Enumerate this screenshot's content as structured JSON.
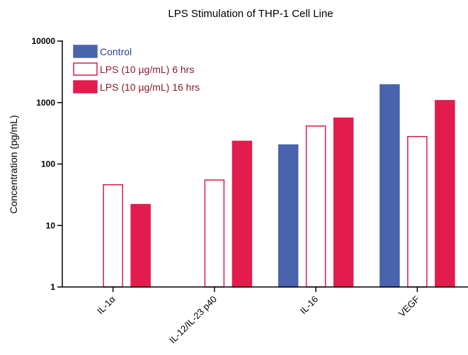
{
  "chart_data": {
    "type": "bar",
    "title": "LPS Stimulation of THP-1 Cell Line",
    "ylabel": "Concentration (pg/mL)",
    "xlabel": "",
    "yscale": "log",
    "ylim": [
      1,
      10000
    ],
    "yticks": [
      "1",
      "10",
      "100",
      "1000",
      "10000"
    ],
    "grid": false,
    "legend_position": "top-left",
    "categories": [
      "IL-1α",
      "IL-12/IL-23 p40",
      "IL-16",
      "VEGF"
    ],
    "series": [
      {
        "name": "Control",
        "values": [
          null,
          null,
          205,
          1950
        ],
        "fill": "#4a63ad",
        "stroke": "#4a63ad",
        "label_color": "#2e3f8f"
      },
      {
        "name": "LPS (10 µg/mL) 6 hrs",
        "values": [
          46,
          55,
          415,
          280
        ],
        "fill": "#ffffff",
        "stroke": "#d81b4a",
        "label_color": "#8b1a2b"
      },
      {
        "name": "LPS (10 µg/mL) 16 hrs",
        "values": [
          22,
          235,
          560,
          1080
        ],
        "fill": "#e21d4d",
        "stroke": "#e21d4d",
        "label_color": "#8b1a2b"
      }
    ]
  }
}
